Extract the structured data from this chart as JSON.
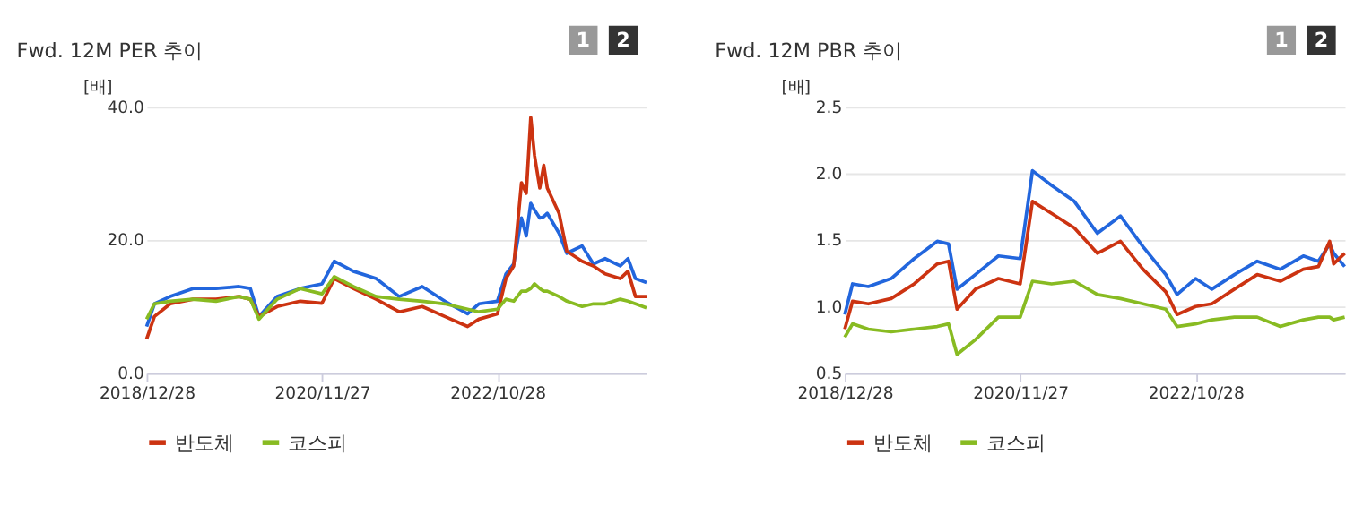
{
  "chart_data": [
    {
      "type": "line",
      "title": "Fwd. 12M PER 추이",
      "annotations": [
        "1",
        "2"
      ],
      "ylabel": "[배]",
      "x": [
        "2018-12-28",
        "2019-01-28",
        "2019-04-01",
        "2019-07-01",
        "2019-10-01",
        "2020-01-01",
        "2020-02-15",
        "2020-03-20",
        "2020-06-01",
        "2020-09-01",
        "2020-11-27",
        "2021-01-15",
        "2021-04-01",
        "2021-07-01",
        "2021-10-01",
        "2022-01-01",
        "2022-04-01",
        "2022-07-01",
        "2022-08-15",
        "2022-10-28",
        "2022-12-01",
        "2023-01-01",
        "2023-02-01",
        "2023-02-20",
        "2023-03-10",
        "2023-03-25",
        "2023-04-15",
        "2023-05-01",
        "2023-05-15",
        "2023-07-01",
        "2023-08-01",
        "2023-10-01",
        "2023-11-15",
        "2024-01-01",
        "2024-03-01",
        "2024-04-01",
        "2024-05-01",
        "2024-06-14"
      ],
      "series": [
        {
          "color": "#2266dd",
          "values": [
            7.0,
            10.4,
            11.5,
            12.7,
            12.7,
            13.0,
            12.7,
            8.5,
            11.5,
            12.7,
            13.4,
            16.8,
            15.3,
            14.2,
            11.5,
            13.0,
            10.8,
            8.9,
            10.4,
            10.8,
            14.9,
            16.4,
            23.3,
            20.6,
            25.5,
            24.5,
            23.3,
            23.5,
            24.0,
            21.0,
            18.0,
            19.1,
            16.4,
            17.2,
            16.1,
            17.2,
            14.2,
            13.6
          ]
        },
        {
          "name": "반도체",
          "color": "#cc3311",
          "values": [
            5.1,
            8.5,
            10.4,
            11.1,
            11.1,
            11.5,
            11.1,
            8.5,
            10.0,
            10.8,
            10.5,
            14.2,
            12.7,
            11.1,
            9.2,
            10.0,
            8.5,
            7.0,
            8.1,
            8.9,
            14.2,
            16.1,
            28.6,
            27.0,
            38.4,
            32.7,
            27.8,
            31.2,
            27.8,
            24.0,
            18.3,
            16.8,
            16.1,
            14.9,
            14.2,
            15.3,
            11.5,
            11.5
          ]
        },
        {
          "name": "코스피",
          "color": "#88bb22",
          "values": [
            8.1,
            10.4,
            10.8,
            11.1,
            10.8,
            11.5,
            11.1,
            8.1,
            11.1,
            12.7,
            11.9,
            14.5,
            13.0,
            11.5,
            11.1,
            10.8,
            10.4,
            9.6,
            9.2,
            9.6,
            11.1,
            10.8,
            12.3,
            12.3,
            12.7,
            13.4,
            12.7,
            12.3,
            12.3,
            11.5,
            10.8,
            10.0,
            10.4,
            10.4,
            11.1,
            10.8,
            10.4,
            9.8
          ]
        }
      ],
      "xlim": [
        "2018-12-28",
        "2024-06-14"
      ],
      "xticks": [
        {
          "value": "2018-12-28",
          "label": "2018/12/28"
        },
        {
          "value": "2020-11-27",
          "label": "2020/11/27"
        },
        {
          "value": "2022-10-28",
          "label": "2022/10/28"
        }
      ],
      "ylim": [
        0,
        40
      ],
      "yticks": [
        {
          "value": 0,
          "label": "0.0"
        },
        {
          "value": 20,
          "label": "20.0"
        },
        {
          "value": 40,
          "label": "40.0"
        }
      ],
      "grid": "y",
      "legend": "bottom",
      "line_style": "solid"
    },
    {
      "type": "line",
      "title": "Fwd. 12M PBR 추이",
      "annotations": [
        "1",
        "2"
      ],
      "ylabel": "[배]",
      "x": [
        "2018-12-28",
        "2019-01-28",
        "2019-04-01",
        "2019-07-01",
        "2019-10-01",
        "2020-01-01",
        "2020-02-15",
        "2020-03-20",
        "2020-06-01",
        "2020-09-01",
        "2020-11-27",
        "2021-01-15",
        "2021-04-01",
        "2021-07-01",
        "2021-10-01",
        "2022-01-01",
        "2022-04-01",
        "2022-07-01",
        "2022-08-15",
        "2022-10-28",
        "2023-01-01",
        "2023-04-01",
        "2023-07-01",
        "2023-10-01",
        "2024-01-01",
        "2024-03-01",
        "2024-04-15",
        "2024-05-01",
        "2024-06-14"
      ],
      "series": [
        {
          "color": "#2266dd",
          "values": [
            0.94,
            1.17,
            1.15,
            1.21,
            1.36,
            1.49,
            1.47,
            1.13,
            1.24,
            1.38,
            1.36,
            2.02,
            1.91,
            1.79,
            1.55,
            1.68,
            1.45,
            1.24,
            1.09,
            1.21,
            1.13,
            1.24,
            1.34,
            1.28,
            1.38,
            1.34,
            1.47,
            1.4,
            1.3
          ]
        },
        {
          "name": "반도체",
          "color": "#cc3311",
          "values": [
            0.83,
            1.04,
            1.02,
            1.06,
            1.17,
            1.32,
            1.34,
            0.98,
            1.13,
            1.21,
            1.17,
            1.79,
            1.7,
            1.59,
            1.4,
            1.49,
            1.28,
            1.11,
            0.94,
            1.0,
            1.02,
            1.13,
            1.24,
            1.19,
            1.28,
            1.3,
            1.49,
            1.32,
            1.4
          ]
        },
        {
          "name": "코스피",
          "color": "#88bb22",
          "values": [
            0.77,
            0.87,
            0.83,
            0.81,
            0.83,
            0.85,
            0.87,
            0.64,
            0.75,
            0.92,
            0.92,
            1.19,
            1.17,
            1.19,
            1.09,
            1.06,
            1.02,
            0.98,
            0.85,
            0.87,
            0.9,
            0.92,
            0.92,
            0.85,
            0.9,
            0.92,
            0.92,
            0.9,
            0.92
          ]
        }
      ],
      "xlim": [
        "2018-12-28",
        "2024-06-14"
      ],
      "xticks": [
        {
          "value": "2018-12-28",
          "label": "2018/12/28"
        },
        {
          "value": "2020-11-27",
          "label": "2020/11/27"
        },
        {
          "value": "2022-10-28",
          "label": "2022/10/28"
        }
      ],
      "ylim": [
        0.5,
        2.5
      ],
      "yticks": [
        {
          "value": 0.5,
          "label": "0.5"
        },
        {
          "value": 1.0,
          "label": "1.0"
        },
        {
          "value": 1.5,
          "label": "1.5"
        },
        {
          "value": 2.0,
          "label": "2.0"
        },
        {
          "value": 2.5,
          "label": "2.5"
        }
      ],
      "grid": "y",
      "legend": "bottom",
      "line_style": "solid"
    }
  ]
}
